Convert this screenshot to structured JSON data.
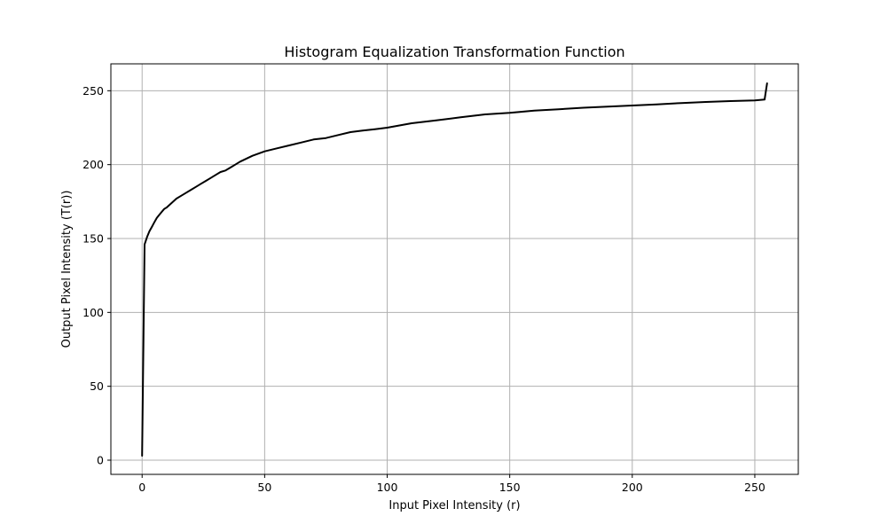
{
  "chart_data": {
    "type": "line",
    "title": "Histogram Equalization Transformation Function",
    "xlabel": "Input Pixel Intensity (r)",
    "ylabel": "Output Pixel Intensity (T(r))",
    "xlim": [
      -12.75,
      267.75
    ],
    "ylim": [
      -9.6,
      268.2
    ],
    "xticks": [
      0,
      50,
      100,
      150,
      200,
      250
    ],
    "yticks": [
      0,
      50,
      100,
      150,
      200,
      250
    ],
    "grid": true,
    "series": [
      {
        "color": "#000000",
        "x": [
          0,
          1,
          2,
          3,
          4,
          5,
          6,
          7,
          8,
          9,
          10,
          12,
          14,
          16,
          18,
          20,
          22,
          24,
          26,
          28,
          30,
          32,
          34,
          36,
          38,
          40,
          45,
          50,
          55,
          60,
          65,
          70,
          75,
          80,
          85,
          90,
          95,
          100,
          110,
          120,
          130,
          140,
          150,
          160,
          170,
          180,
          190,
          200,
          210,
          220,
          230,
          240,
          250,
          254,
          255
        ],
        "y": [
          3,
          146,
          151,
          155,
          158,
          161,
          164,
          166,
          168,
          170,
          171,
          174,
          177,
          179,
          181,
          183,
          185,
          187,
          189,
          191,
          193,
          195,
          196,
          198,
          200,
          202,
          206,
          209,
          211,
          213,
          215,
          217,
          218,
          220,
          222,
          223,
          224,
          225,
          228,
          230,
          232,
          234,
          235,
          236.5,
          237.5,
          238.5,
          239.3,
          240,
          240.8,
          241.7,
          242.4,
          243,
          243.5,
          244,
          255
        ]
      }
    ]
  }
}
